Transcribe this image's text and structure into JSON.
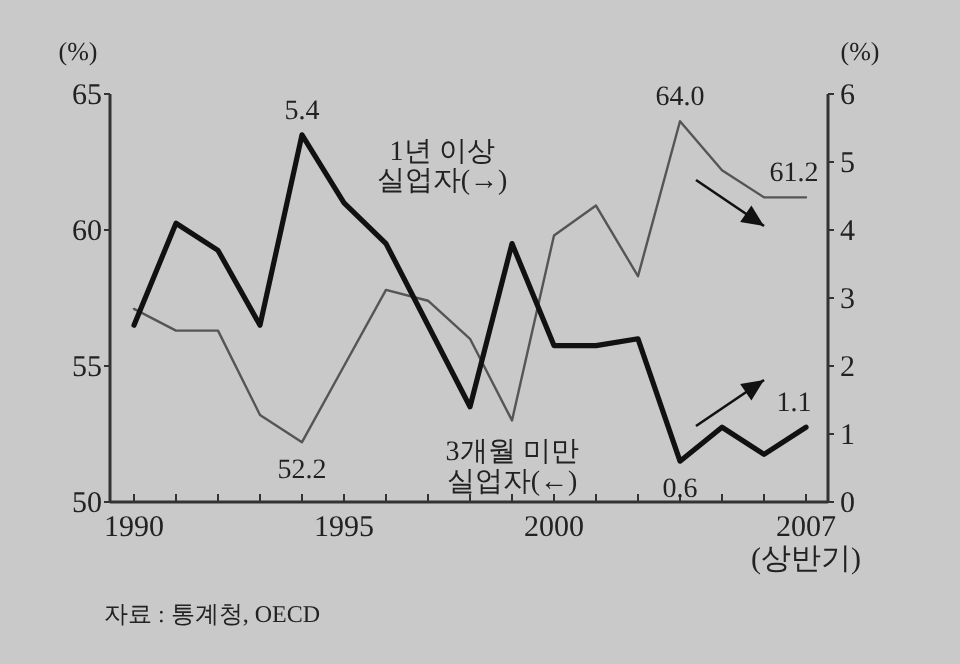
{
  "chart_data": {
    "type": "line",
    "categories": [
      "1990",
      null,
      null,
      null,
      null,
      "1995",
      null,
      null,
      null,
      null,
      "2000",
      null,
      null,
      null,
      null,
      null,
      "2007\n(상반기)"
    ],
    "series": [
      {
        "name": "3개월 미만\n실업자(←)",
        "color": "#555555",
        "values": [
          57.1,
          56.3,
          56.3,
          53.2,
          52.2,
          55.0,
          57.8,
          57.4,
          56.0,
          53.0,
          59.8,
          60.9,
          58.3,
          64.0,
          62.2,
          61.2,
          61.2
        ],
        "value_labels": [
          null,
          null,
          null,
          null,
          "52.2",
          null,
          null,
          null,
          null,
          null,
          null,
          null,
          null,
          "64.0",
          null,
          null,
          "61.2"
        ]
      },
      {
        "name": "1년 이상\n실업자(→)",
        "color": "#111111",
        "axis": "y2",
        "values": [
          2.6,
          4.1,
          3.7,
          2.6,
          5.4,
          4.4,
          3.8,
          2.6,
          1.4,
          3.8,
          2.3,
          2.3,
          2.4,
          0.6,
          1.1,
          0.7,
          1.1
        ],
        "value_labels": [
          null,
          null,
          null,
          null,
          "5.4",
          null,
          null,
          null,
          null,
          null,
          null,
          null,
          null,
          "0.6",
          null,
          null,
          "1.1"
        ]
      }
    ],
    "ylabel": "(%)",
    "y2label": "(%)",
    "ylim": [
      50,
      65
    ],
    "yticks": [
      50,
      55,
      60,
      65
    ],
    "y2lim": [
      0,
      6
    ],
    "y2ticks": [
      0,
      1,
      2,
      3,
      4,
      5,
      6
    ],
    "annotations": [
      "자료 : 통계청, OECD"
    ]
  }
}
